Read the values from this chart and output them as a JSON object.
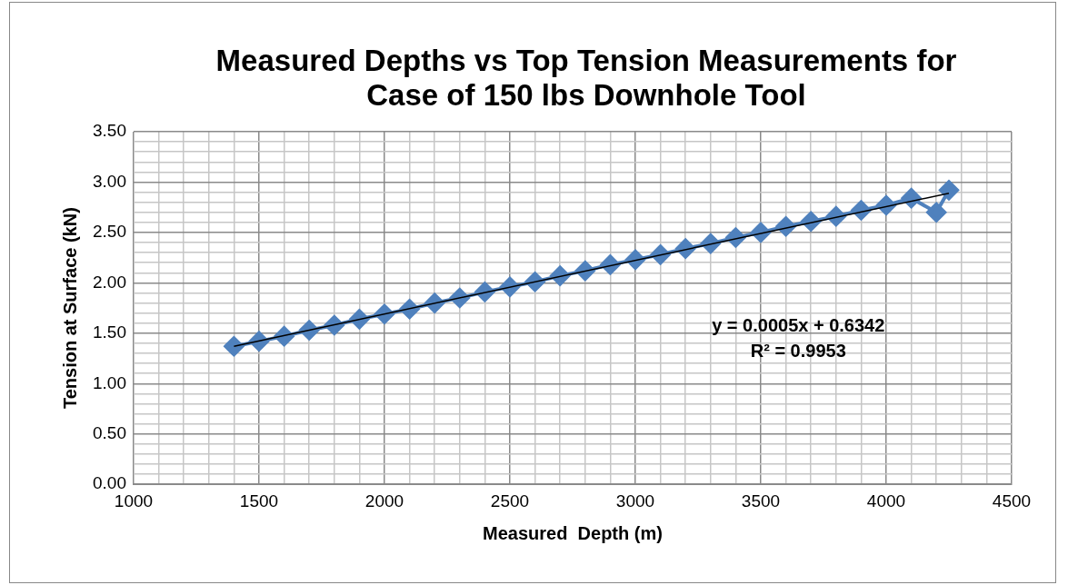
{
  "chart_data": {
    "type": "line",
    "title": "Measured Depths vs Top Tension Measurements for Case of 150 lbs Downhole Tool",
    "xlabel": "Measured  Depth (m)",
    "ylabel": "Tension at Surface (kN)",
    "annotations": [
      "y = 0.0005x + 0.6342",
      "R² = 0.9953"
    ],
    "series": [
      {
        "color": "#4f81bd",
        "marker": "diamond",
        "x": [
          1400,
          1500,
          1600,
          1700,
          1800,
          1900,
          2000,
          2100,
          2200,
          2300,
          2400,
          2500,
          2600,
          2700,
          2800,
          2900,
          3000,
          3100,
          3200,
          3300,
          3400,
          3500,
          3600,
          3700,
          3800,
          3900,
          4000,
          4100,
          4200,
          4250
        ],
        "values": [
          1.37,
          1.42,
          1.47,
          1.53,
          1.58,
          1.64,
          1.69,
          1.74,
          1.8,
          1.85,
          1.91,
          1.96,
          2.01,
          2.07,
          2.12,
          2.18,
          2.23,
          2.28,
          2.34,
          2.39,
          2.45,
          2.5,
          2.56,
          2.61,
          2.66,
          2.72,
          2.77,
          2.84,
          2.7,
          2.92
        ]
      },
      {
        "color": "#000000",
        "marker": "none",
        "x": [
          1400,
          4250
        ],
        "values": [
          1.37,
          2.89
        ]
      }
    ],
    "xlim": [
      1000,
      4500
    ],
    "xticks": [
      1000,
      {
        "value": 1100,
        "label": null
      },
      {
        "value": 1200,
        "label": null
      },
      {
        "value": 1300,
        "label": null
      },
      {
        "value": 1400,
        "label": null
      },
      1500,
      {
        "value": 1600,
        "label": null
      },
      {
        "value": 1700,
        "label": null
      },
      {
        "value": 1800,
        "label": null
      },
      {
        "value": 1900,
        "label": null
      },
      2000,
      {
        "value": 2100,
        "label": null
      },
      {
        "value": 2200,
        "label": null
      },
      {
        "value": 2300,
        "label": null
      },
      {
        "value": 2400,
        "label": null
      },
      2500,
      {
        "value": 2600,
        "label": null
      },
      {
        "value": 2700,
        "label": null
      },
      {
        "value": 2800,
        "label": null
      },
      {
        "value": 2900,
        "label": null
      },
      3000,
      {
        "value": 3100,
        "label": null
      },
      {
        "value": 3200,
        "label": null
      },
      {
        "value": 3300,
        "label": null
      },
      {
        "value": 3400,
        "label": null
      },
      3500,
      {
        "value": 3600,
        "label": null
      },
      {
        "value": 3700,
        "label": null
      },
      {
        "value": 3800,
        "label": null
      },
      {
        "value": 3900,
        "label": null
      },
      4000,
      {
        "value": 4100,
        "label": null
      },
      {
        "value": 4200,
        "label": null
      },
      {
        "value": 4300,
        "label": null
      },
      {
        "value": 4400,
        "label": null
      },
      4500
    ],
    "ylim": [
      0,
      3.5
    ],
    "yticks": [
      {
        "value": 0,
        "label": "0.00"
      },
      {
        "value": 0.1,
        "label": null
      },
      {
        "value": 0.2,
        "label": null
      },
      {
        "value": 0.3,
        "label": null
      },
      {
        "value": 0.4,
        "label": null
      },
      {
        "value": 0.5,
        "label": "0.50"
      },
      {
        "value": 0.6,
        "label": null
      },
      {
        "value": 0.7,
        "label": null
      },
      {
        "value": 0.8,
        "label": null
      },
      {
        "value": 0.9,
        "label": null
      },
      {
        "value": 1,
        "label": "1.00"
      },
      {
        "value": 1.1,
        "label": null
      },
      {
        "value": 1.2,
        "label": null
      },
      {
        "value": 1.3,
        "label": null
      },
      {
        "value": 1.4,
        "label": null
      },
      {
        "value": 1.5,
        "label": "1.50"
      },
      {
        "value": 1.6,
        "label": null
      },
      {
        "value": 1.7,
        "label": null
      },
      {
        "value": 1.8,
        "label": null
      },
      {
        "value": 1.9,
        "label": null
      },
      {
        "value": 2,
        "label": "2.00"
      },
      {
        "value": 2.1,
        "label": null
      },
      {
        "value": 2.2,
        "label": null
      },
      {
        "value": 2.3,
        "label": null
      },
      {
        "value": 2.4,
        "label": null
      },
      {
        "value": 2.5,
        "label": "2.50"
      },
      {
        "value": 2.6,
        "label": null
      },
      {
        "value": 2.7,
        "label": null
      },
      {
        "value": 2.8,
        "label": null
      },
      {
        "value": 2.9,
        "label": null
      },
      {
        "value": 3,
        "label": "3.00"
      },
      {
        "value": 3.1,
        "label": null
      },
      {
        "value": 3.2,
        "label": null
      },
      {
        "value": 3.3,
        "label": null
      },
      {
        "value": 3.4,
        "label": null
      },
      {
        "value": 3.5,
        "label": "3.50"
      }
    ],
    "grid": true,
    "legend": false
  }
}
